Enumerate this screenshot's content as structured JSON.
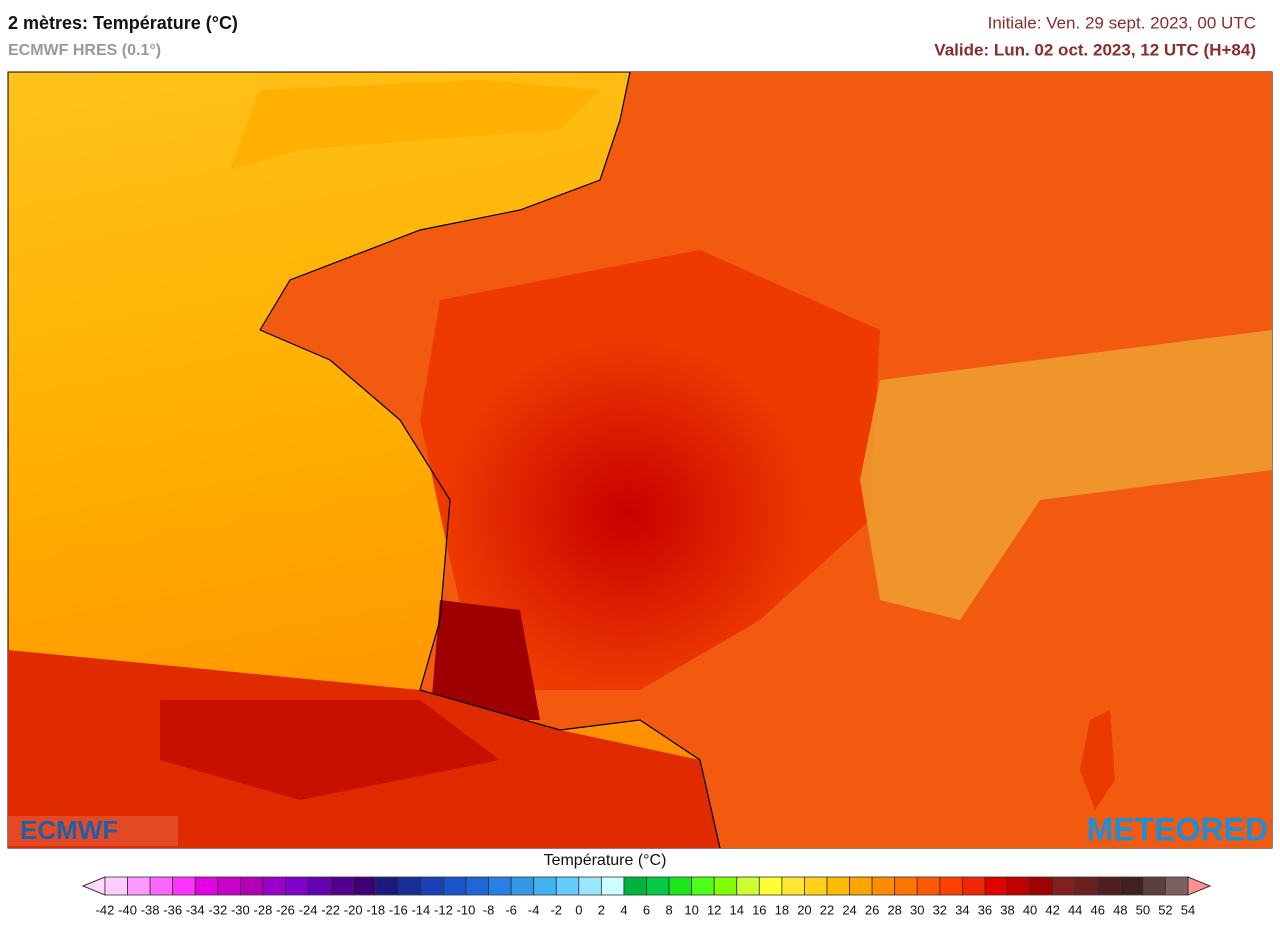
{
  "header": {
    "title": "2 mètres: Température (°C)",
    "subtitle": "ECMWF HRES (0.1°)",
    "init": "Initiale: Ven. 29 sept. 2023, 00 UTC",
    "valid": "Valide: Lun. 02 oct. 2023, 12 UTC (H+84)"
  },
  "logos": {
    "left": "ECMWF",
    "right": "METEORED"
  },
  "legend": {
    "title": "Température (°C)",
    "ticks": [
      -42,
      -40,
      -38,
      -36,
      -34,
      -32,
      -30,
      -28,
      -26,
      -24,
      -22,
      -20,
      -18,
      -16,
      -14,
      -12,
      -10,
      -8,
      -6,
      -4,
      -2,
      0,
      2,
      4,
      6,
      8,
      10,
      12,
      14,
      16,
      18,
      20,
      22,
      24,
      26,
      28,
      30,
      32,
      34,
      36,
      38,
      40,
      42,
      44,
      46,
      48,
      50,
      52,
      54
    ],
    "colors": [
      "#ffd9ff",
      "#ffccff",
      "#ff99ff",
      "#ff66ff",
      "#ff33ff",
      "#e600e6",
      "#cc00cc",
      "#b300b3",
      "#9900cc",
      "#8000cc",
      "#6600b3",
      "#52008f",
      "#400073",
      "#1a1a80",
      "#1a2e99",
      "#1a40b3",
      "#1a53cc",
      "#1f66d9",
      "#2680e6",
      "#3399e6",
      "#40b3f2",
      "#66ccff",
      "#99e6ff",
      "#ccffff",
      "#00b33c",
      "#00cc44",
      "#1ae61a",
      "#4dff1a",
      "#80ff00",
      "#ccff33",
      "#ffff33",
      "#ffe633",
      "#ffd11a",
      "#ffbb00",
      "#ffa500",
      "#ff8c00",
      "#ff7300",
      "#ff5a00",
      "#ff4000",
      "#f02800",
      "#e00000",
      "#c00000",
      "#a00000",
      "#802020",
      "#6b2020",
      "#502020",
      "#402020",
      "#5c4040",
      "#7a6060",
      "#ff9090"
    ]
  }
}
